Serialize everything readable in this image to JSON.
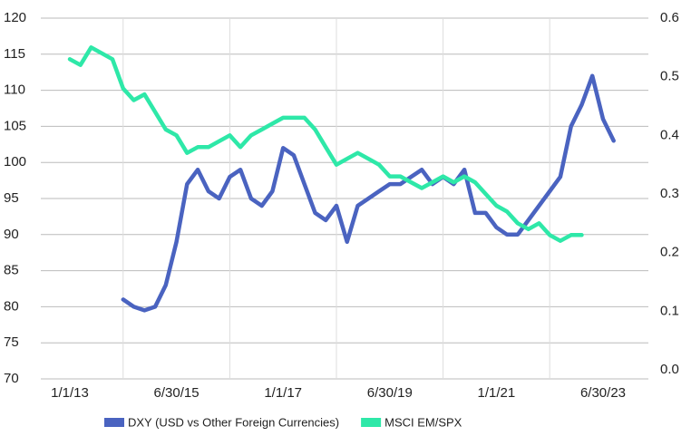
{
  "chart_data": {
    "type": "line",
    "categories": [
      null,
      null,
      null,
      "1/1/13",
      null,
      null,
      null,
      null,
      null,
      null,
      null,
      null,
      null,
      "6/30/15",
      null,
      null,
      null,
      null,
      null,
      null,
      null,
      null,
      null,
      "1/1/17",
      null,
      null,
      null,
      null,
      null,
      null,
      null,
      null,
      null,
      "6/30/19",
      null,
      null,
      null,
      null,
      null,
      null,
      null,
      null,
      null,
      "1/1/21",
      null,
      null,
      null,
      null,
      null,
      null,
      null,
      null,
      null,
      "6/30/23",
      null,
      null,
      null,
      null
    ],
    "series": [
      {
        "name": "DXY (USD vs Other Foreign Currencies)",
        "color": "#4a63c0",
        "axis": "y",
        "values": [
          null,
          null,
          null,
          null,
          null,
          null,
          null,
          null,
          81,
          80,
          79.5,
          80,
          83,
          89,
          97,
          99,
          96,
          95,
          98,
          99,
          95,
          94,
          96,
          102,
          101,
          97,
          93,
          92,
          94,
          89,
          94,
          95,
          96,
          97,
          97,
          98,
          99,
          97,
          98,
          97,
          99,
          93,
          93,
          91,
          90,
          90,
          92,
          94,
          96,
          98,
          105,
          108,
          112,
          106,
          103,
          null,
          null,
          null
        ]
      },
      {
        "name": "MSCI EM/SPX",
        "color": "#2ee8a8",
        "axis": "y2",
        "values": [
          null,
          null,
          null,
          0.53,
          0.52,
          0.55,
          0.54,
          0.53,
          0.48,
          0.46,
          0.47,
          0.44,
          0.41,
          0.4,
          0.37,
          0.38,
          0.38,
          0.39,
          0.4,
          0.38,
          0.4,
          0.41,
          0.42,
          0.43,
          0.43,
          0.43,
          0.41,
          0.38,
          0.35,
          0.36,
          0.37,
          0.36,
          0.35,
          0.33,
          0.33,
          0.32,
          0.31,
          0.32,
          0.33,
          0.32,
          0.33,
          0.32,
          0.3,
          0.28,
          0.27,
          0.25,
          0.24,
          0.25,
          0.23,
          0.22,
          0.23,
          0.23,
          null,
          null,
          null,
          null,
          null,
          null
        ]
      }
    ],
    "ylim": [
      70,
      120
    ],
    "yticks": [
      70,
      75,
      80,
      85,
      90,
      95,
      100,
      105,
      110,
      115,
      120
    ],
    "y2lim": [
      0,
      0.6
    ],
    "y2ticks": [
      {
        "value": 0,
        "label": "0.0"
      },
      0.1,
      0.2,
      0.3,
      0.4,
      0.5,
      0.6
    ],
    "grid": true
  }
}
